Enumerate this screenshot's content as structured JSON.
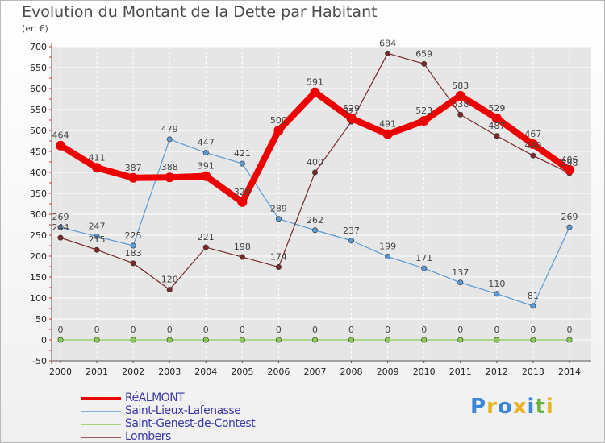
{
  "title": "Evolution du Montant de la Dette par Habitant",
  "unit_label": "(en €)",
  "logo": {
    "letters": [
      "P",
      "r",
      "o",
      "x",
      "i",
      "t",
      "i"
    ],
    "colors": [
      "#3a86d8",
      "#e8b428",
      "#3a86d8",
      "#e8b428",
      "#3a86d8",
      "#6db33f",
      "#e8b428"
    ]
  },
  "chart_data": {
    "type": "line",
    "x": [
      "2000",
      "2001",
      "2002",
      "2003",
      "2004",
      "2005",
      "2006",
      "2007",
      "2008",
      "2009",
      "2010",
      "2011",
      "2012",
      "2013",
      "2014"
    ],
    "ylim": [
      -50,
      700
    ],
    "yticks": [
      -50,
      0,
      50,
      100,
      150,
      200,
      250,
      300,
      350,
      400,
      450,
      500,
      550,
      600,
      650,
      700
    ],
    "grid": true,
    "legend_position": "bottom-left",
    "series": [
      {
        "name": "RéALMONT",
        "color": "#ee0000",
        "values": [
          464,
          411,
          387,
          388,
          391,
          329,
          500,
          591,
          529,
          491,
          523,
          583,
          529,
          467,
          406
        ]
      },
      {
        "name": "Saint-Lieux-Lafenasse",
        "color": "#5b9bd5",
        "values": [
          269,
          247,
          225,
          479,
          447,
          421,
          289,
          262,
          237,
          199,
          171,
          137,
          110,
          81,
          269
        ]
      },
      {
        "name": "Saint-Genest-de-Contest",
        "color": "#88cc55",
        "values": [
          0,
          0,
          0,
          0,
          0,
          0,
          0,
          0,
          0,
          0,
          0,
          0,
          0,
          0,
          0
        ]
      },
      {
        "name": "Lombers",
        "color": "#7a2a2a",
        "values": [
          244,
          215,
          183,
          120,
          221,
          198,
          174,
          400,
          521,
          684,
          659,
          538,
          487,
          440,
          398
        ]
      }
    ]
  }
}
